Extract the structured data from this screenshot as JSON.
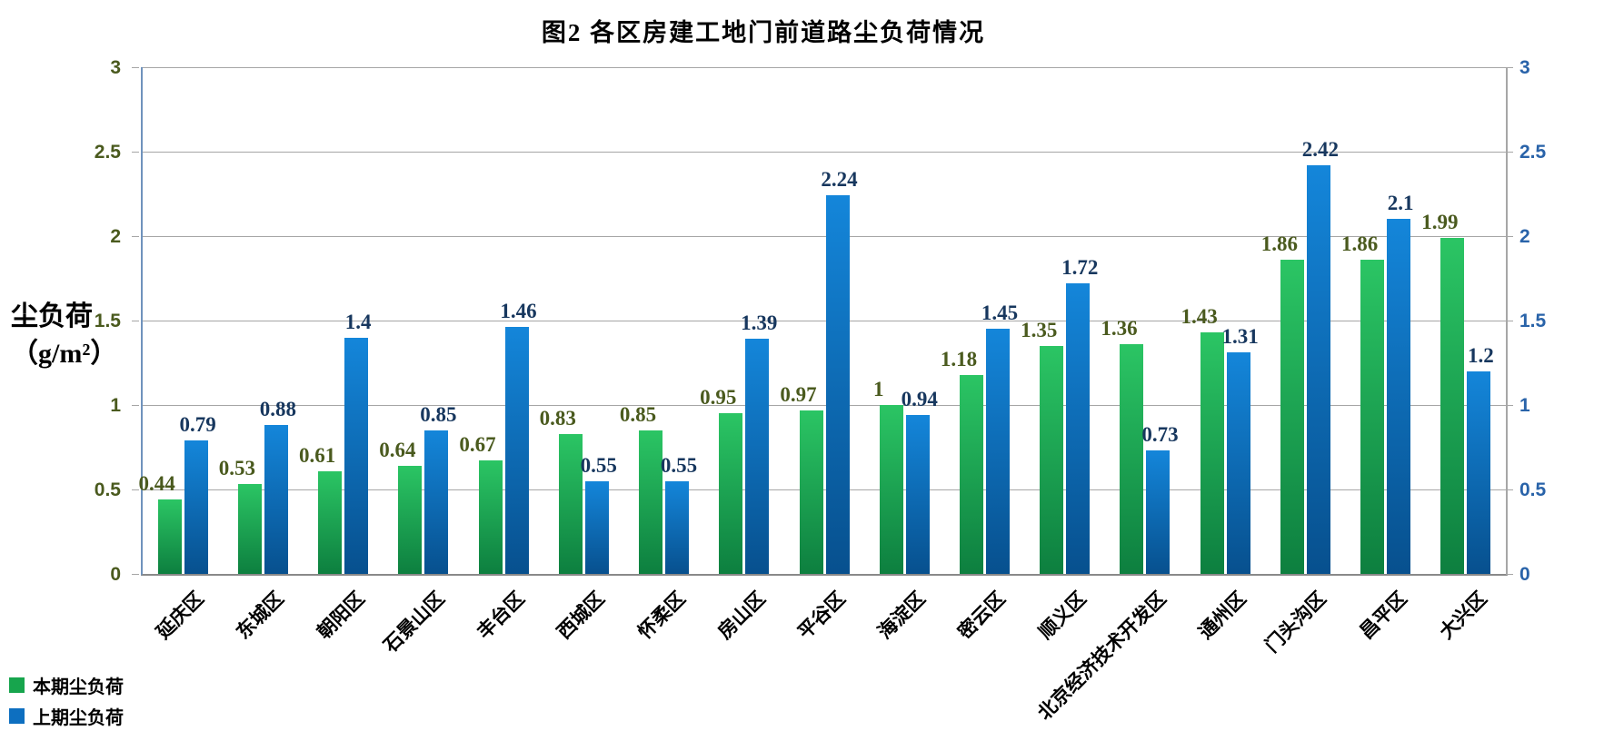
{
  "title": "图2  各区房建工地门前道路尘负荷情况",
  "y_axis": {
    "title_line1": "尘负荷",
    "title_line2": "（g/m²）",
    "ticks": [
      "0",
      "0.5",
      "1",
      "1.5",
      "2",
      "2.5",
      "3"
    ]
  },
  "legend": [
    {
      "label": "本期尘负荷",
      "color": "#17a54d"
    },
    {
      "label": "上期尘负荷",
      "color": "#0d6fc0"
    }
  ],
  "colors": {
    "current_bar_top": "#2bc564",
    "current_bar_bottom": "#0d7f3f",
    "previous_bar_top": "#1486da",
    "previous_bar_bottom": "#07508e",
    "current_label": "#4a5a1e",
    "previous_label": "#17375e",
    "left_axis_label": "#4a5a1e",
    "right_axis_label": "#2963a9",
    "gridline": "#a6a6a6"
  },
  "chart_data": {
    "type": "bar",
    "title": "图2  各区房建工地门前道路尘负荷情况",
    "xlabel": "",
    "ylabel": "尘负荷（g/m²）",
    "ylim": [
      0,
      3
    ],
    "ytick_step": 0.5,
    "grid": true,
    "legend_position": "bottom-left",
    "dual_y_axis_labels": true,
    "categories": [
      "延庆区",
      "东城区",
      "朝阳区",
      "石景山区",
      "丰台区",
      "西城区",
      "怀柔区",
      "房山区",
      "平谷区",
      "海淀区",
      "密云区",
      "顺义区",
      "北京经济技术开发区",
      "通州区",
      "门头沟区",
      "昌平区",
      "大兴区"
    ],
    "series": [
      {
        "name": "本期尘负荷",
        "values": [
          0.44,
          0.53,
          0.61,
          0.64,
          0.67,
          0.83,
          0.85,
          0.95,
          0.97,
          1,
          1.18,
          1.35,
          1.36,
          1.43,
          1.86,
          1.86,
          1.99
        ]
      },
      {
        "name": "上期尘负荷",
        "values": [
          0.79,
          0.88,
          1.4,
          0.85,
          1.46,
          0.55,
          0.55,
          1.39,
          2.24,
          0.94,
          1.45,
          1.72,
          0.73,
          1.31,
          2.42,
          2.1,
          1.2
        ]
      }
    ]
  }
}
